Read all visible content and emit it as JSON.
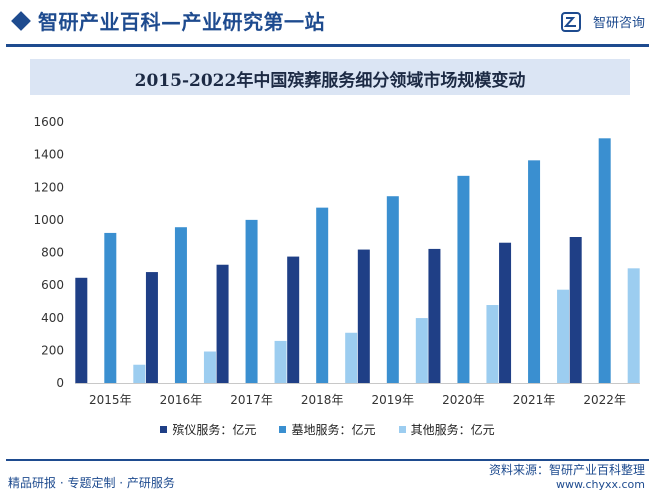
{
  "header": {
    "title": "智研产业百科—产业研究第一站",
    "brand": "智研咨询",
    "brand_icon": "zhiyan-logo-icon"
  },
  "footer": {
    "tagline": "精品研报 · 专题定制 · 产研服务",
    "source": "资料来源：智研产业百科整理",
    "url": "www.chyxx.com"
  },
  "colors": {
    "brand": "#1e4b8f",
    "series": [
      "#1f3f86",
      "#3a8fd0",
      "#9ccdf0"
    ]
  },
  "chart_data": {
    "type": "bar",
    "title": "2015-2022年中国殡葬服务细分领域市场规模变动",
    "categories": [
      "2015年",
      "2016年",
      "2017年",
      "2018年",
      "2019年",
      "2020年",
      "2021年",
      "2022年"
    ],
    "series": [
      {
        "name": "殡仪服务：亿元",
        "values": [
          645,
          680,
          725,
          775,
          818,
          822,
          860,
          895
        ]
      },
      {
        "name": "墓地服务：亿元",
        "values": [
          920,
          955,
          1000,
          1075,
          1145,
          1270,
          1365,
          1500
        ]
      },
      {
        "name": "其他服务：亿元",
        "values": [
          112,
          193,
          258,
          308,
          398,
          478,
          572,
          703
        ]
      }
    ],
    "ylim": [
      0,
      1600
    ],
    "yticks": [
      0,
      200,
      400,
      600,
      800,
      1000,
      1200,
      1400,
      1600
    ],
    "xlabel": "",
    "ylabel": "",
    "grid": false,
    "legend_position": "bottom"
  }
}
